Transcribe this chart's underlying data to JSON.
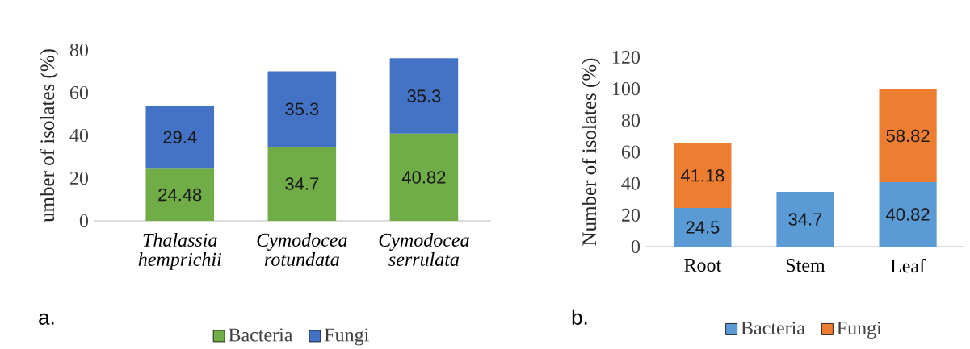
{
  "chart_data": [
    {
      "type": "bar",
      "stacked": true,
      "ylabel": "umber of isolates (%)",
      "categories": [
        "Thalassia hemprichii",
        "Cymodocea rotundata",
        "Cymodocea serrulata"
      ],
      "series": [
        {
          "name": "Bacteria",
          "color": "#70ad47",
          "values": [
            24.48,
            34.7,
            40.82
          ]
        },
        {
          "name": "Fungi",
          "color": "#4472c4",
          "values": [
            29.4,
            35.3,
            35.3
          ]
        }
      ],
      "ylim": [
        0,
        80
      ],
      "yticks": [
        0,
        20,
        40,
        60,
        80
      ],
      "data_labels": true,
      "legend": "bottom",
      "annotations": [
        "a."
      ]
    },
    {
      "type": "bar",
      "stacked": true,
      "ylabel": "Number of isolates (%)",
      "categories": [
        "Root",
        "Stem",
        "Leaf"
      ],
      "series": [
        {
          "name": "Bacteria",
          "color": "#5b9bd5",
          "values": [
            24.5,
            34.7,
            40.82
          ]
        },
        {
          "name": "Fungi",
          "color": "#ed7d31",
          "values": [
            41.18,
            null,
            58.82
          ]
        }
      ],
      "ylim": [
        0,
        120
      ],
      "yticks": [
        0,
        20,
        40,
        60,
        80,
        100,
        120
      ],
      "data_labels": true,
      "legend": "bottom",
      "annotations": [
        "b."
      ]
    }
  ]
}
